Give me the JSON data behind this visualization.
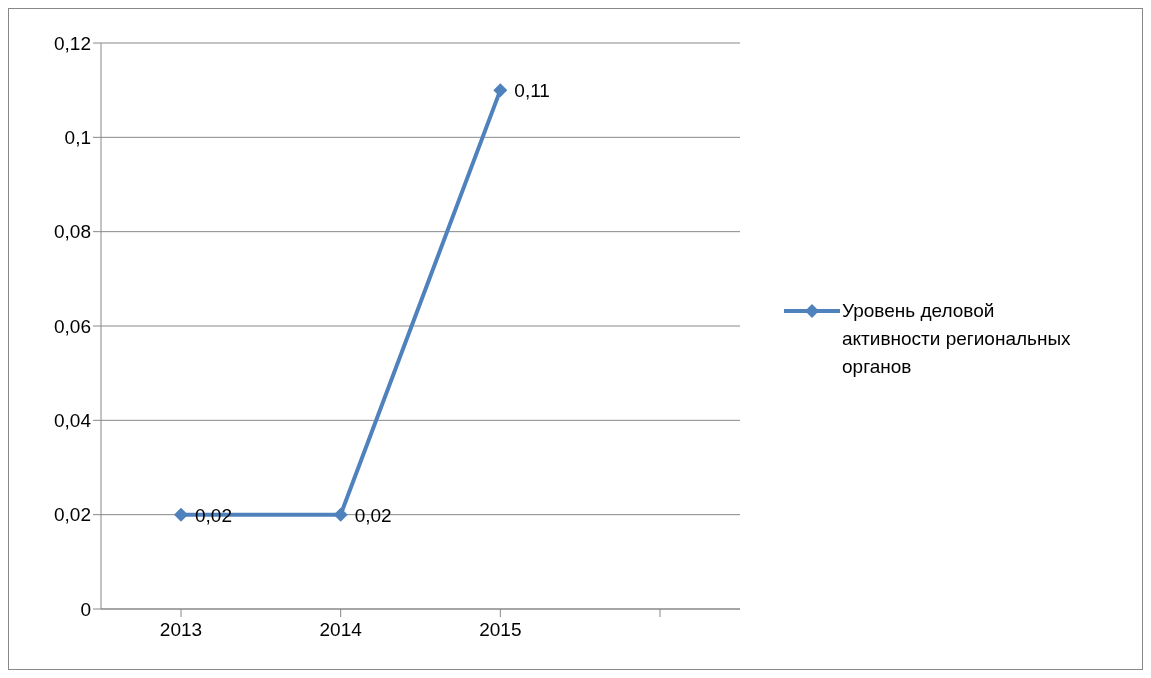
{
  "chart_data": {
    "type": "line",
    "categories": [
      "2013",
      "2014",
      "2015",
      null
    ],
    "series": [
      {
        "name": "Уровень деловой активности региональных органов",
        "color": "#4f81bd",
        "values": [
          0.02,
          0.02,
          0.11,
          null
        ],
        "value_labels": [
          "0,02",
          "0,02",
          "0,11",
          null
        ]
      }
    ],
    "ylim": [
      0,
      0.12
    ],
    "yticks": [
      {
        "value": 0,
        "label": "0"
      },
      {
        "value": 0.02,
        "label": "0,02"
      },
      {
        "value": 0.04,
        "label": "0,04"
      },
      {
        "value": 0.06,
        "label": "0,06"
      },
      {
        "value": 0.08,
        "label": "0,08"
      },
      {
        "value": 0.1,
        "label": "0,1"
      },
      {
        "value": 0.12,
        "label": "0,12"
      }
    ],
    "grid": "y",
    "legend": "right",
    "marker": "diamond",
    "line_style": "solid"
  }
}
